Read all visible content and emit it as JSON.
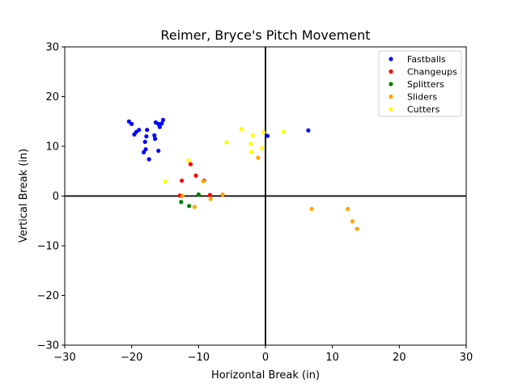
{
  "chart_data": {
    "type": "scatter",
    "title": "Reimer, Bryce's Pitch Movement",
    "xlabel": "Horizontal Break (in)",
    "ylabel": "Vertical Break (in)",
    "xlim": [
      -30,
      30
    ],
    "ylim": [
      -30,
      30
    ],
    "xticks": [
      -30,
      -20,
      -10,
      0,
      10,
      20,
      30
    ],
    "yticks": [
      -30,
      -20,
      -10,
      0,
      10,
      20,
      30
    ],
    "grid": false,
    "legend_position": "top-right",
    "series": [
      {
        "name": "Fastballs",
        "color": "#0000ff",
        "points": [
          [
            -20.4,
            15.0
          ],
          [
            -20.0,
            14.5
          ],
          [
            -19.6,
            12.4
          ],
          [
            -19.3,
            12.9
          ],
          [
            -18.9,
            13.3
          ],
          [
            -18.2,
            8.8
          ],
          [
            -17.9,
            9.4
          ],
          [
            -18.0,
            10.9
          ],
          [
            -17.8,
            12.0
          ],
          [
            -17.7,
            13.3
          ],
          [
            -17.4,
            7.4
          ],
          [
            -16.6,
            12.2
          ],
          [
            -16.5,
            11.5
          ],
          [
            -16.4,
            14.8
          ],
          [
            -16.0,
            14.5
          ],
          [
            -16.0,
            9.1
          ],
          [
            -15.8,
            13.9
          ],
          [
            -15.5,
            14.6
          ],
          [
            -15.3,
            15.3
          ],
          [
            6.4,
            13.2
          ],
          [
            0.3,
            12.1
          ]
        ]
      },
      {
        "name": "Changeups",
        "color": "#ff0000",
        "points": [
          [
            -12.8,
            0.1
          ],
          [
            -12.5,
            3.1
          ],
          [
            -11.2,
            6.4
          ],
          [
            -10.4,
            4.1
          ],
          [
            -9.2,
            3.1
          ],
          [
            -8.3,
            0.2
          ]
        ]
      },
      {
        "name": "Splitters",
        "color": "#008000",
        "points": [
          [
            -12.6,
            -1.2
          ],
          [
            -11.4,
            -2.0
          ],
          [
            -10.0,
            0.3
          ]
        ]
      },
      {
        "name": "Sliders",
        "color": "#ffa500",
        "points": [
          [
            -12.4,
            0.0
          ],
          [
            -10.6,
            -2.2
          ],
          [
            -9.3,
            3.0
          ],
          [
            -8.2,
            -0.6
          ],
          [
            -6.4,
            0.3
          ],
          [
            -1.1,
            7.7
          ],
          [
            6.9,
            -2.6
          ],
          [
            12.3,
            -2.6
          ],
          [
            13.0,
            -5.1
          ],
          [
            13.7,
            -6.6
          ]
        ]
      },
      {
        "name": "Cutters",
        "color": "#ffff00",
        "points": [
          [
            -15.0,
            2.9
          ],
          [
            -11.5,
            7.2
          ],
          [
            -5.8,
            10.8
          ],
          [
            -3.6,
            13.5
          ],
          [
            -2.2,
            10.5
          ],
          [
            -2.1,
            8.9
          ],
          [
            -1.9,
            12.2
          ],
          [
            -0.5,
            9.6
          ],
          [
            -0.3,
            12.8
          ],
          [
            2.7,
            12.9
          ]
        ]
      }
    ]
  }
}
